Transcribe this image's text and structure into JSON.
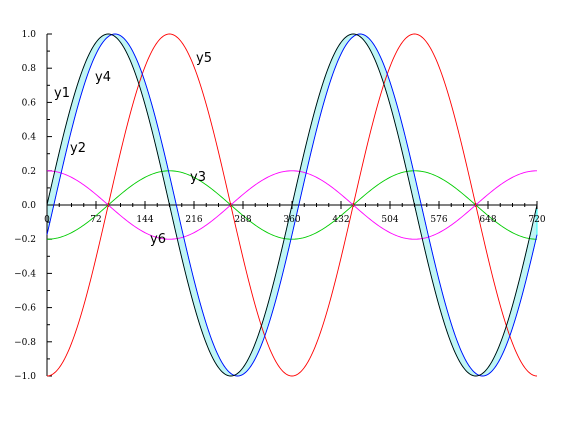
{
  "chart_data": {
    "type": "line",
    "title": "",
    "xlabel": "",
    "ylabel": "",
    "xlim": [
      0,
      720
    ],
    "ylim": [
      -1.0,
      1.0
    ],
    "grid": false,
    "legend": "none (series labelled directly on the plot)",
    "x_ticks": [
      0,
      72,
      144,
      216,
      288,
      360,
      432,
      504,
      576,
      648,
      720
    ],
    "x_tick_labels": [
      "0",
      "72",
      "144",
      "216",
      "288",
      "360",
      "432",
      "504",
      "576",
      "648",
      "720"
    ],
    "y_ticks": [
      1.0,
      0.8,
      0.6,
      0.4,
      0.2,
      0.0,
      -0.2,
      -0.4,
      -0.6,
      -0.8,
      -1.0
    ],
    "y_tick_labels": [
      "1.0",
      "0.8",
      "0.6",
      "0.4",
      "0.2",
      "0.0",
      "−0.2",
      "−0.4",
      "−0.6",
      "−0.8",
      "−1.0"
    ],
    "x_unit": "degrees",
    "series": [
      {
        "name": "y1",
        "color": "#000000",
        "formula": "sin(x)",
        "amplitude": 1.0,
        "phase_deg": 0
      },
      {
        "name": "y2",
        "color": "#ff00ff",
        "formula": "0.2*cos(x)",
        "amplitude": 0.2,
        "phase_deg": 90
      },
      {
        "name": "y3",
        "color": "#00cc00",
        "formula": "-0.2*cos(x)",
        "amplitude": -0.2,
        "phase_deg": 90
      },
      {
        "name": "y4",
        "color": "#0000ff",
        "formula": "sin(x-10)",
        "amplitude": 1.0,
        "phase_deg": -10
      },
      {
        "name": "y5",
        "color": "#ff0000",
        "formula": "-cos(x)",
        "amplitude": -1.0,
        "phase_deg": 90
      },
      {
        "name": "y6",
        "color": "#00ffff",
        "formula": "band between y1 and y4",
        "fill": "#bff5f5"
      }
    ]
  }
}
